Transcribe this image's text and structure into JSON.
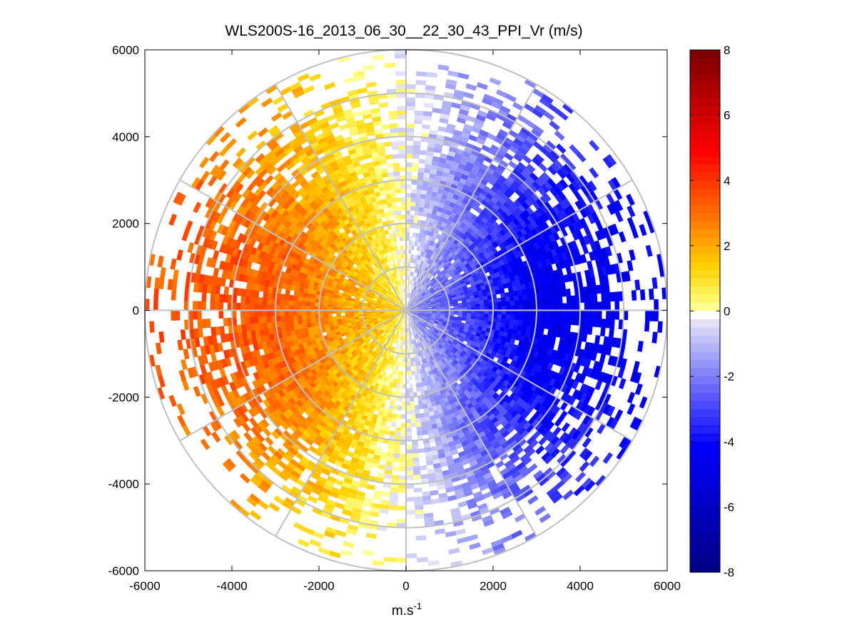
{
  "chart_data": {
    "type": "heatmap",
    "subtype": "polar-ppi",
    "title": "WLS200S-16_2013_06_30__22_30_43_PPI_Vr (m/s)",
    "xlabel_base": "m.s",
    "xlabel_sup": "-1",
    "ylabel": "",
    "xlim": [
      -6000,
      6000
    ],
    "ylim": [
      -6000,
      6000
    ],
    "x_ticks": [
      "-6000",
      "-4000",
      "-2000",
      "0",
      "2000",
      "4000",
      "6000"
    ],
    "y_ticks": [
      "6000",
      "4000",
      "2000",
      "0",
      "-2000",
      "-4000",
      "-6000"
    ],
    "x_tick_values": [
      -6000,
      -4000,
      -2000,
      0,
      2000,
      4000,
      6000
    ],
    "y_tick_values": [
      6000,
      4000,
      2000,
      0,
      -2000,
      -4000,
      -6000
    ],
    "range_rings_m": [
      1000,
      2000,
      3000,
      4000,
      5000,
      6000
    ],
    "radial_spokes_deg": [
      0,
      30,
      60,
      90,
      120,
      150,
      180,
      210,
      240,
      270,
      300,
      330
    ],
    "field": {
      "description_unit": "m/s",
      "max_range_m": 6000,
      "west_peak_velocity": 3.5,
      "east_peak_velocity": -4.5,
      "sign_change_bearing_deg": 0
    },
    "colorbar": {
      "range": [
        -8,
        8
      ],
      "ticks": [
        "8",
        "6",
        "4",
        "2",
        "0",
        "-2",
        "-4",
        "-6",
        "-8"
      ],
      "tick_values": [
        8,
        6,
        4,
        2,
        0,
        -2,
        -4,
        -6,
        -8
      ],
      "colors": {
        "neg_dark": "#00007f",
        "neg_strong": "#0000ff",
        "neg_light": "#dcdcf5",
        "zero": "#ffffff",
        "pos_light": "#ffff7f",
        "pos_yellow": "#ffd000",
        "pos_orange": "#ff7f00",
        "pos_red": "#ff0000",
        "pos_dark": "#7f0000"
      }
    },
    "grid_color": "#c0c0c0"
  }
}
